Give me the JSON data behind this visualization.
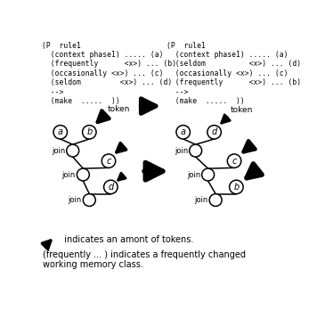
{
  "bg_color": "#ffffff",
  "text_left": [
    "(P  rule1",
    "  (context phase1) ..... (a)",
    "  (frequently      <x>) ... (b)",
    "  (occasionally <x>) ... (c)",
    "  (seldom         <x>) ... (d)",
    "  -->",
    "  (make  .....  ))"
  ],
  "text_right": [
    "(P  rule1",
    "  (context phase1) ..... (a)",
    "  (seldom          <x>) ... (d)",
    "  (occasionally <x>) ... (c)",
    "  (frequently      <x>) ... (b)",
    "  -->",
    "  (make  .....  ))"
  ],
  "legend_arrow_text": "  indicates an amont of tokens.",
  "legend_freq_text": "(frequently ... ) indicates a frequently changed\nworking memory class."
}
